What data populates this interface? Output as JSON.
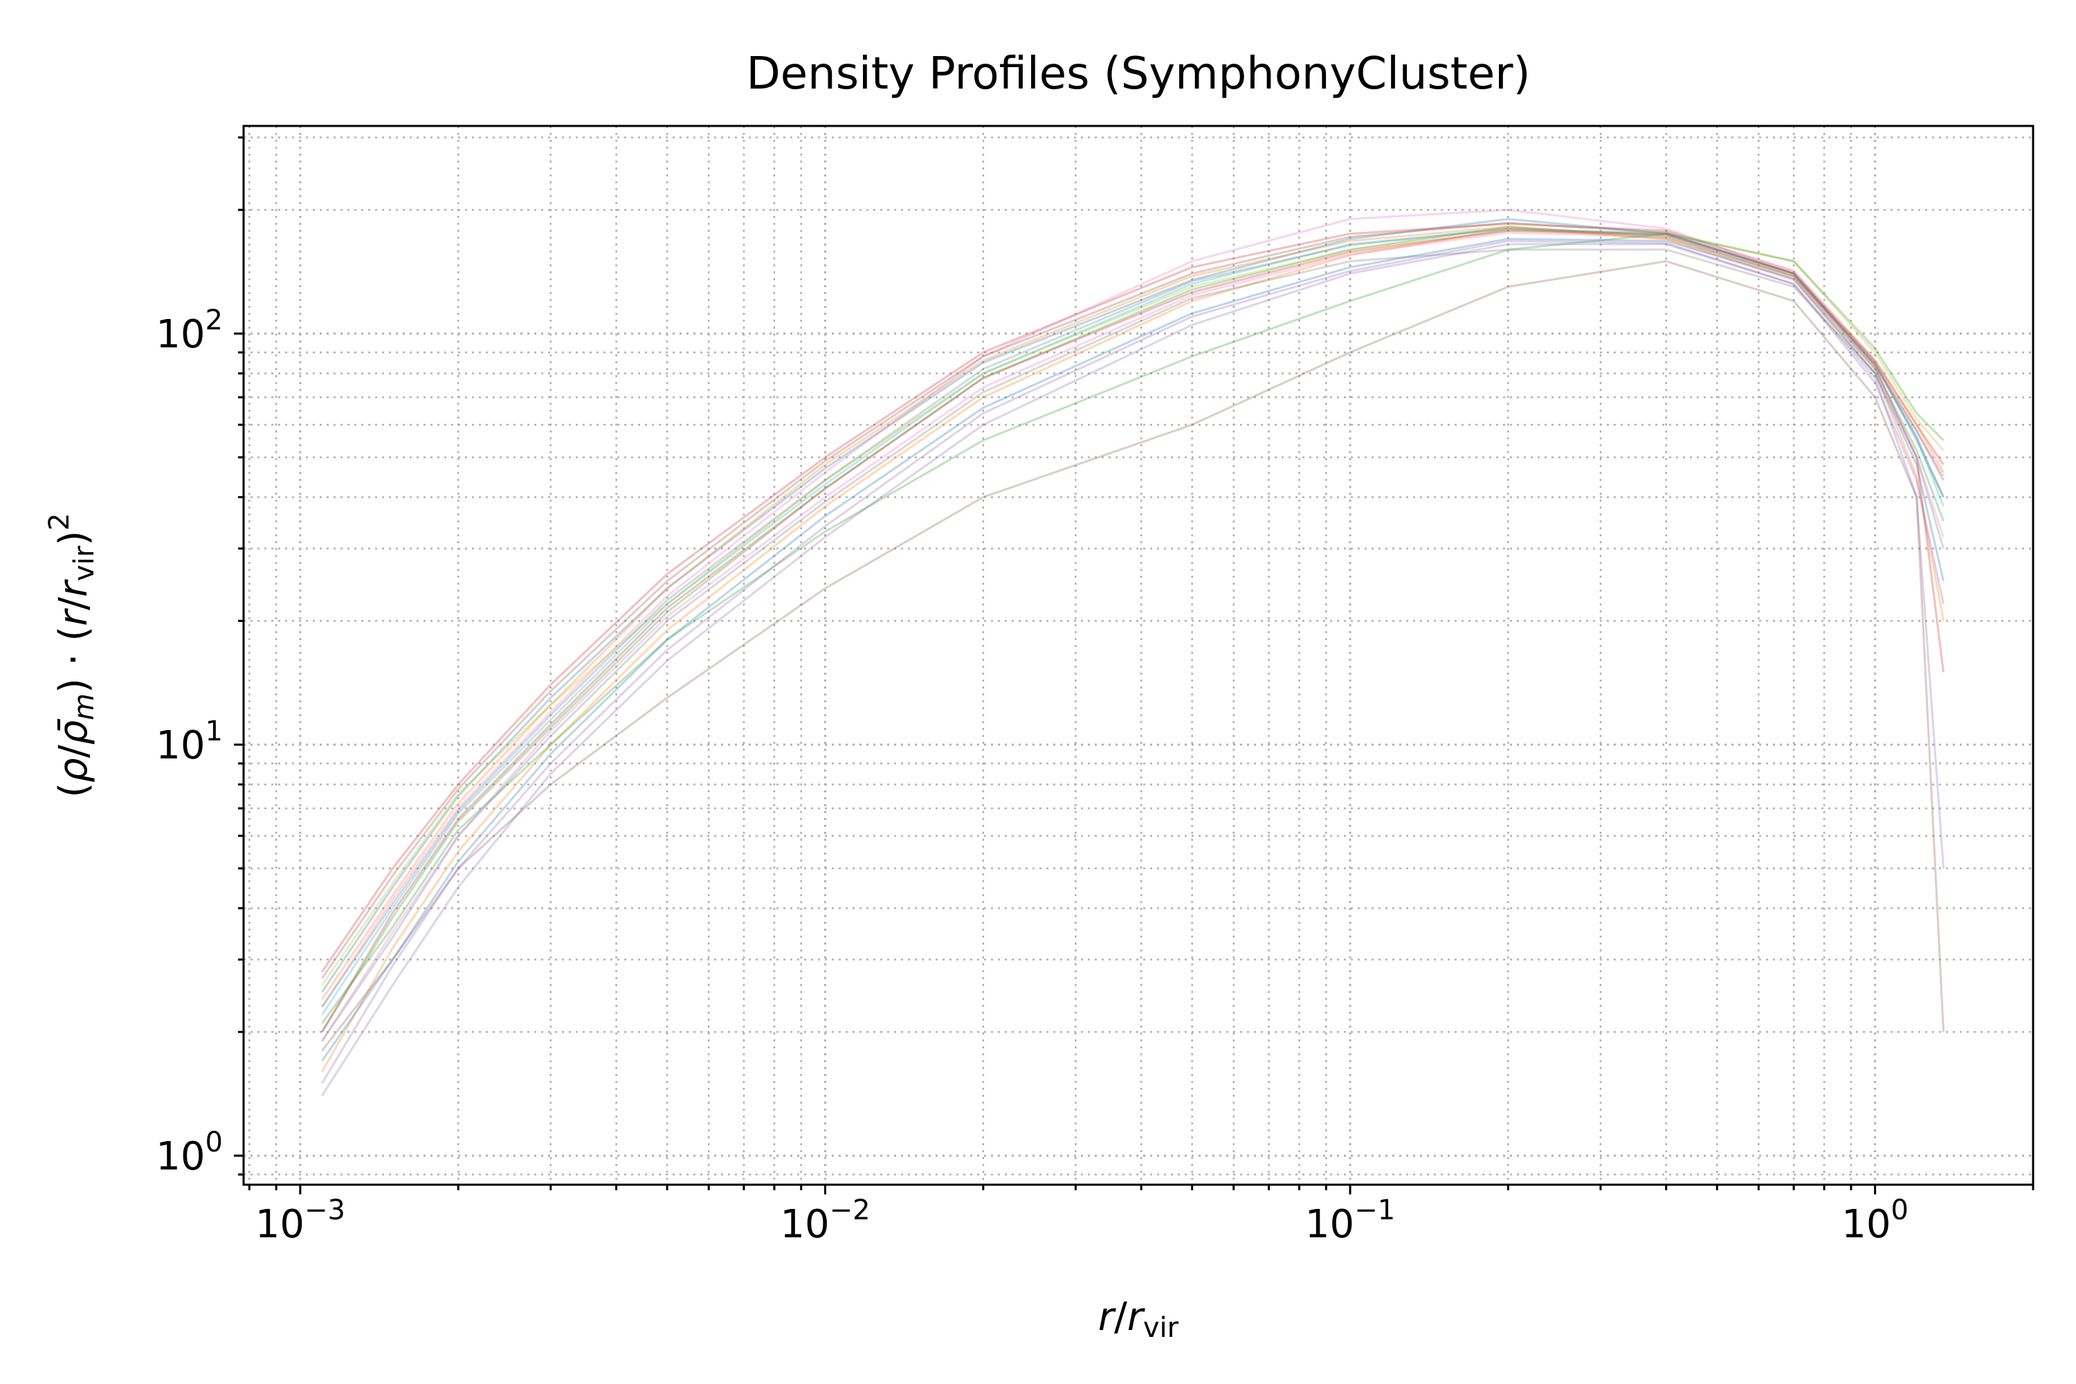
{
  "chart_data": {
    "type": "line",
    "title": "Density Profiles (SymphonyCluster)",
    "xlabel": "r/r_vir",
    "ylabel": "(ρ/ρ̄_m)·(r/r_vir)^2",
    "x_scale": "log",
    "y_scale": "log",
    "xlim": [
      0.00078,
      2.0
    ],
    "ylim": [
      0.85,
      320
    ],
    "grid": true,
    "grid_style": "dotted, major and minor",
    "legend": "none",
    "x_ticks": [
      {
        "base": "10",
        "exp": "−3"
      },
      {
        "base": "10",
        "exp": "−2"
      },
      {
        "base": "10",
        "exp": "−1"
      },
      {
        "base": "10",
        "exp": "0"
      }
    ],
    "y_ticks": [
      {
        "base": "10",
        "exp": "0"
      },
      {
        "base": "10",
        "exp": "1"
      },
      {
        "base": "10",
        "exp": "2"
      }
    ],
    "line_alpha": 0.3,
    "colors": [
      "#1f77b4",
      "#ff7f0e",
      "#2ca02c",
      "#d62728",
      "#9467bd",
      "#8c564b",
      "#e377c2",
      "#7f7f7f",
      "#bcbd22",
      "#17becf"
    ],
    "x": [
      0.0011,
      0.0015,
      0.002,
      0.003,
      0.005,
      0.01,
      0.02,
      0.05,
      0.1,
      0.2,
      0.4,
      0.7,
      1.0,
      1.2,
      1.35
    ],
    "series": [
      {
        "values": [
          2.5,
          4.5,
          7.5,
          13,
          24,
          47,
          85,
          135,
          170,
          190,
          175,
          140,
          85,
          55,
          40
        ]
      },
      {
        "values": [
          1.6,
          3.2,
          5.5,
          10,
          19,
          38,
          70,
          120,
          155,
          180,
          170,
          135,
          80,
          45,
          20
        ]
      },
      {
        "values": [
          2.0,
          3.8,
          6.5,
          11,
          21,
          42,
          78,
          128,
          160,
          182,
          172,
          138,
          82,
          52,
          35
        ]
      },
      {
        "values": [
          2.8,
          5.0,
          8.0,
          14,
          26,
          50,
          90,
          145,
          175,
          185,
          178,
          142,
          86,
          60,
          48
        ]
      },
      {
        "values": [
          1.4,
          2.6,
          4.5,
          8.5,
          16,
          32,
          60,
          105,
          140,
          165,
          165,
          132,
          78,
          40,
          5
        ]
      },
      {
        "values": [
          1.8,
          3.0,
          5.0,
          8.0,
          13,
          24,
          40,
          60,
          90,
          130,
          150,
          120,
          70,
          40,
          2
        ]
      },
      {
        "values": [
          2.3,
          4.2,
          7.0,
          12,
          23,
          46,
          88,
          150,
          190,
          200,
          180,
          140,
          85,
          58,
          45
        ]
      },
      {
        "values": [
          1.9,
          3.4,
          6.0,
          10.5,
          20,
          39,
          72,
          122,
          150,
          160,
          160,
          130,
          80,
          50,
          30
        ]
      },
      {
        "values": [
          2.6,
          4.6,
          7.6,
          12.5,
          22,
          44,
          80,
          130,
          160,
          178,
          176,
          150,
          90,
          62,
          52
        ]
      },
      {
        "values": [
          2.2,
          4.0,
          6.8,
          11.5,
          22,
          43,
          80,
          132,
          165,
          180,
          175,
          140,
          84,
          56,
          38
        ]
      },
      {
        "values": [
          1.7,
          3.0,
          5.2,
          9.5,
          18,
          36,
          66,
          112,
          145,
          170,
          168,
          136,
          80,
          48,
          25
        ]
      },
      {
        "values": [
          2.4,
          4.3,
          7.2,
          12.5,
          24,
          48,
          86,
          138,
          168,
          182,
          170,
          138,
          86,
          60,
          46
        ]
      },
      {
        "values": [
          2.1,
          3.6,
          6.2,
          10,
          18,
          33,
          55,
          88,
          120,
          160,
          175,
          150,
          92,
          64,
          55
        ]
      },
      {
        "values": [
          2.0,
          3.9,
          6.6,
          11.2,
          21.5,
          42,
          78,
          126,
          158,
          178,
          174,
          140,
          83,
          50,
          15
        ]
      },
      {
        "values": [
          1.5,
          2.9,
          5.0,
          9.0,
          17,
          34,
          64,
          110,
          142,
          168,
          166,
          132,
          76,
          44,
          22
        ]
      },
      {
        "values": [
          2.7,
          4.8,
          7.8,
          13.5,
          25,
          49,
          88,
          140,
          172,
          186,
          176,
          140,
          84,
          58,
          44
        ]
      },
      {
        "values": [
          1.9,
          3.5,
          6.0,
          10.8,
          20.5,
          40,
          74,
          124,
          156,
          176,
          172,
          136,
          82,
          50,
          32
        ]
      },
      {
        "values": [
          2.3,
          4.1,
          6.9,
          11.8,
          22.5,
          44,
          82,
          134,
          164,
          180,
          174,
          138,
          84,
          56,
          40
        ]
      }
    ]
  }
}
